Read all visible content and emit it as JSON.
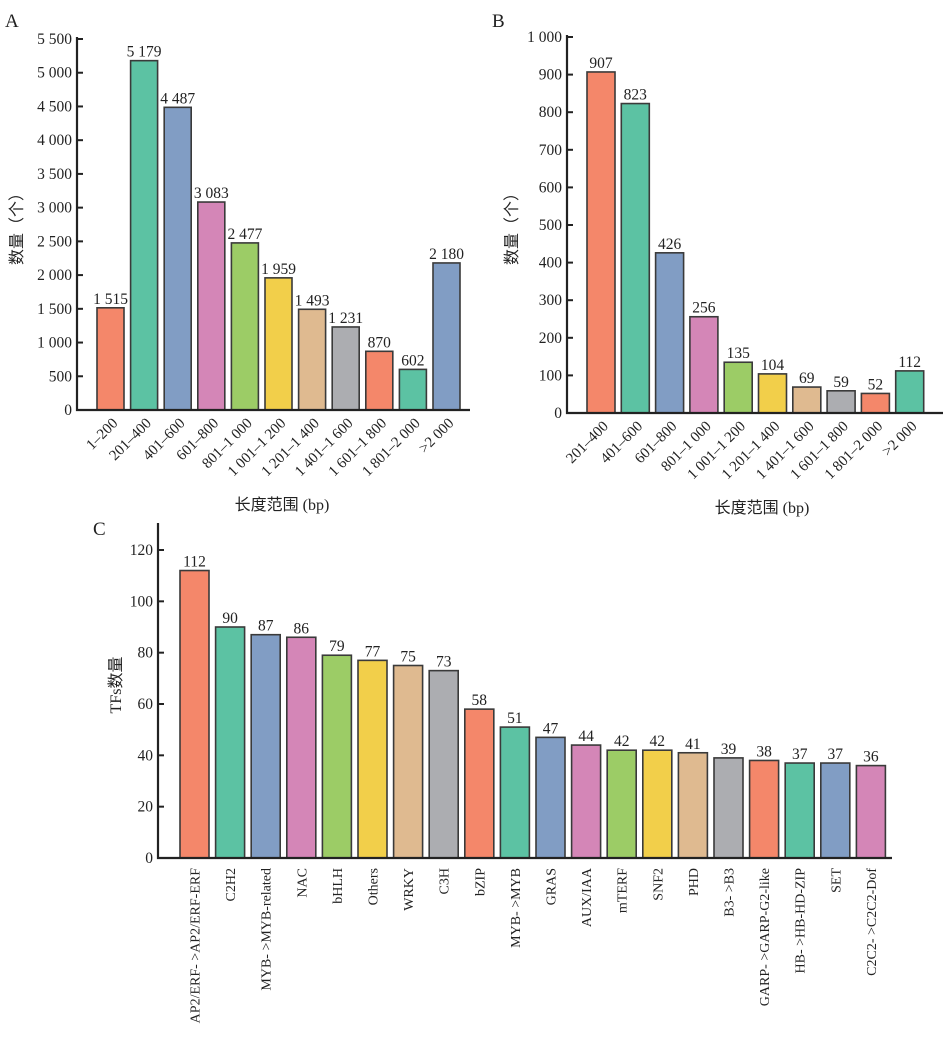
{
  "palette": [
    "#f4876a",
    "#5cc2a3",
    "#819dc4",
    "#d486b7",
    "#9ccc66",
    "#f2cf4a",
    "#dfba90",
    "#acadb1"
  ],
  "chart_data": [
    {
      "id": "A",
      "type": "bar",
      "panel_label": "A",
      "title": "",
      "xlabel": "长度范围 (bp)",
      "ylabel": "数量（个）",
      "ylim": [
        0,
        5500
      ],
      "yticks": [
        0,
        500,
        1000,
        1500,
        2000,
        2500,
        3000,
        3500,
        4000,
        4500,
        5000,
        5500
      ],
      "ytick_labels": [
        "0",
        "500",
        "1 000",
        "1 500",
        "2 000",
        "2 500",
        "3 000",
        "3 500",
        "4 000",
        "4 500",
        "5 000",
        "5 500"
      ],
      "categories": [
        "1–200",
        "201–400",
        "401–600",
        "601–800",
        "801–1 000",
        "1 001–1 200",
        "1 201–1 400",
        "1 401–1 600",
        "1 601–1 800",
        "1 801–2 000",
        ">2 000"
      ],
      "values": [
        1515,
        5179,
        4487,
        3083,
        2477,
        1959,
        1493,
        1231,
        870,
        602,
        2180
      ],
      "value_labels": [
        "1 515",
        "5 179",
        "4 487",
        "3 083",
        "2 477",
        "1 959",
        "1 493",
        "1 231",
        "870",
        "602",
        "2 180"
      ],
      "colors": [
        "#f4876a",
        "#5cc2a3",
        "#819dc4",
        "#d486b7",
        "#9ccc66",
        "#f2cf4a",
        "#dfba90",
        "#acadb1",
        "#f4876a",
        "#5cc2a3",
        "#819dc4"
      ],
      "grid": false,
      "legend": "none"
    },
    {
      "id": "B",
      "type": "bar",
      "panel_label": "B",
      "title": "",
      "xlabel": "长度范围 (bp)",
      "ylabel": "数量（个）",
      "ylim": [
        0,
        1000
      ],
      "yticks": [
        0,
        100,
        200,
        300,
        400,
        500,
        600,
        700,
        800,
        900,
        1000
      ],
      "ytick_labels": [
        "0",
        "100",
        "200",
        "300",
        "400",
        "500",
        "600",
        "700",
        "800",
        "900",
        "1 000"
      ],
      "categories": [
        "201–400",
        "401–600",
        "601–800",
        "801–1 000",
        "1 001–1 200",
        "1 201–1 400",
        "1 401–1 600",
        "1 601–1 800",
        "1 801–2 000",
        ">2 000"
      ],
      "values": [
        907,
        823,
        426,
        256,
        135,
        104,
        69,
        59,
        52,
        112
      ],
      "value_labels": [
        "907",
        "823",
        "426",
        "256",
        "135",
        "104",
        "69",
        "59",
        "52",
        "112"
      ],
      "colors": [
        "#f4876a",
        "#5cc2a3",
        "#819dc4",
        "#d486b7",
        "#9ccc66",
        "#f2cf4a",
        "#dfba90",
        "#acadb1",
        "#f4876a",
        "#5cc2a3"
      ],
      "grid": false,
      "legend": "none"
    },
    {
      "id": "C",
      "type": "bar",
      "panel_label": "C",
      "title": "",
      "xlabel": "",
      "ylabel": "TFs数量",
      "ylim": [
        0,
        130
      ],
      "yticks": [
        0,
        20,
        40,
        60,
        80,
        100,
        120
      ],
      "ytick_labels": [
        "0",
        "20",
        "40",
        "60",
        "80",
        "100",
        "120"
      ],
      "categories": [
        "AP2/ERF- >AP2/ERF-ERF",
        "C2H2",
        "MYB- >MYB-related",
        "NAC",
        "bHLH",
        "Others",
        "WRKY",
        "C3H",
        "bZIP",
        "MYB- >MYB",
        "GRAS",
        "AUX/IAA",
        "mTERF",
        "SNF2",
        "PHD",
        "B3- >B3",
        "GARP- >GARP-G2-like",
        "HB- >HB-HD-ZIP",
        "SET",
        "C2C2- >C2C2-Dof"
      ],
      "values": [
        112,
        90,
        87,
        86,
        79,
        77,
        75,
        73,
        58,
        51,
        47,
        44,
        42,
        42,
        41,
        39,
        38,
        37,
        37,
        36
      ],
      "value_labels": [
        "112",
        "90",
        "87",
        "86",
        "79",
        "77",
        "75",
        "73",
        "58",
        "51",
        "47",
        "44",
        "42",
        "42",
        "41",
        "39",
        "38",
        "37",
        "37",
        "36"
      ],
      "colors": [
        "#f4876a",
        "#5cc2a3",
        "#819dc4",
        "#d486b7",
        "#9ccc66",
        "#f2cf4a",
        "#dfba90",
        "#acadb1",
        "#f4876a",
        "#5cc2a3",
        "#819dc4",
        "#d486b7",
        "#9ccc66",
        "#f2cf4a",
        "#dfba90",
        "#acadb1",
        "#f4876a",
        "#5cc2a3",
        "#819dc4",
        "#d486b7"
      ],
      "grid": false,
      "legend": "none"
    }
  ]
}
